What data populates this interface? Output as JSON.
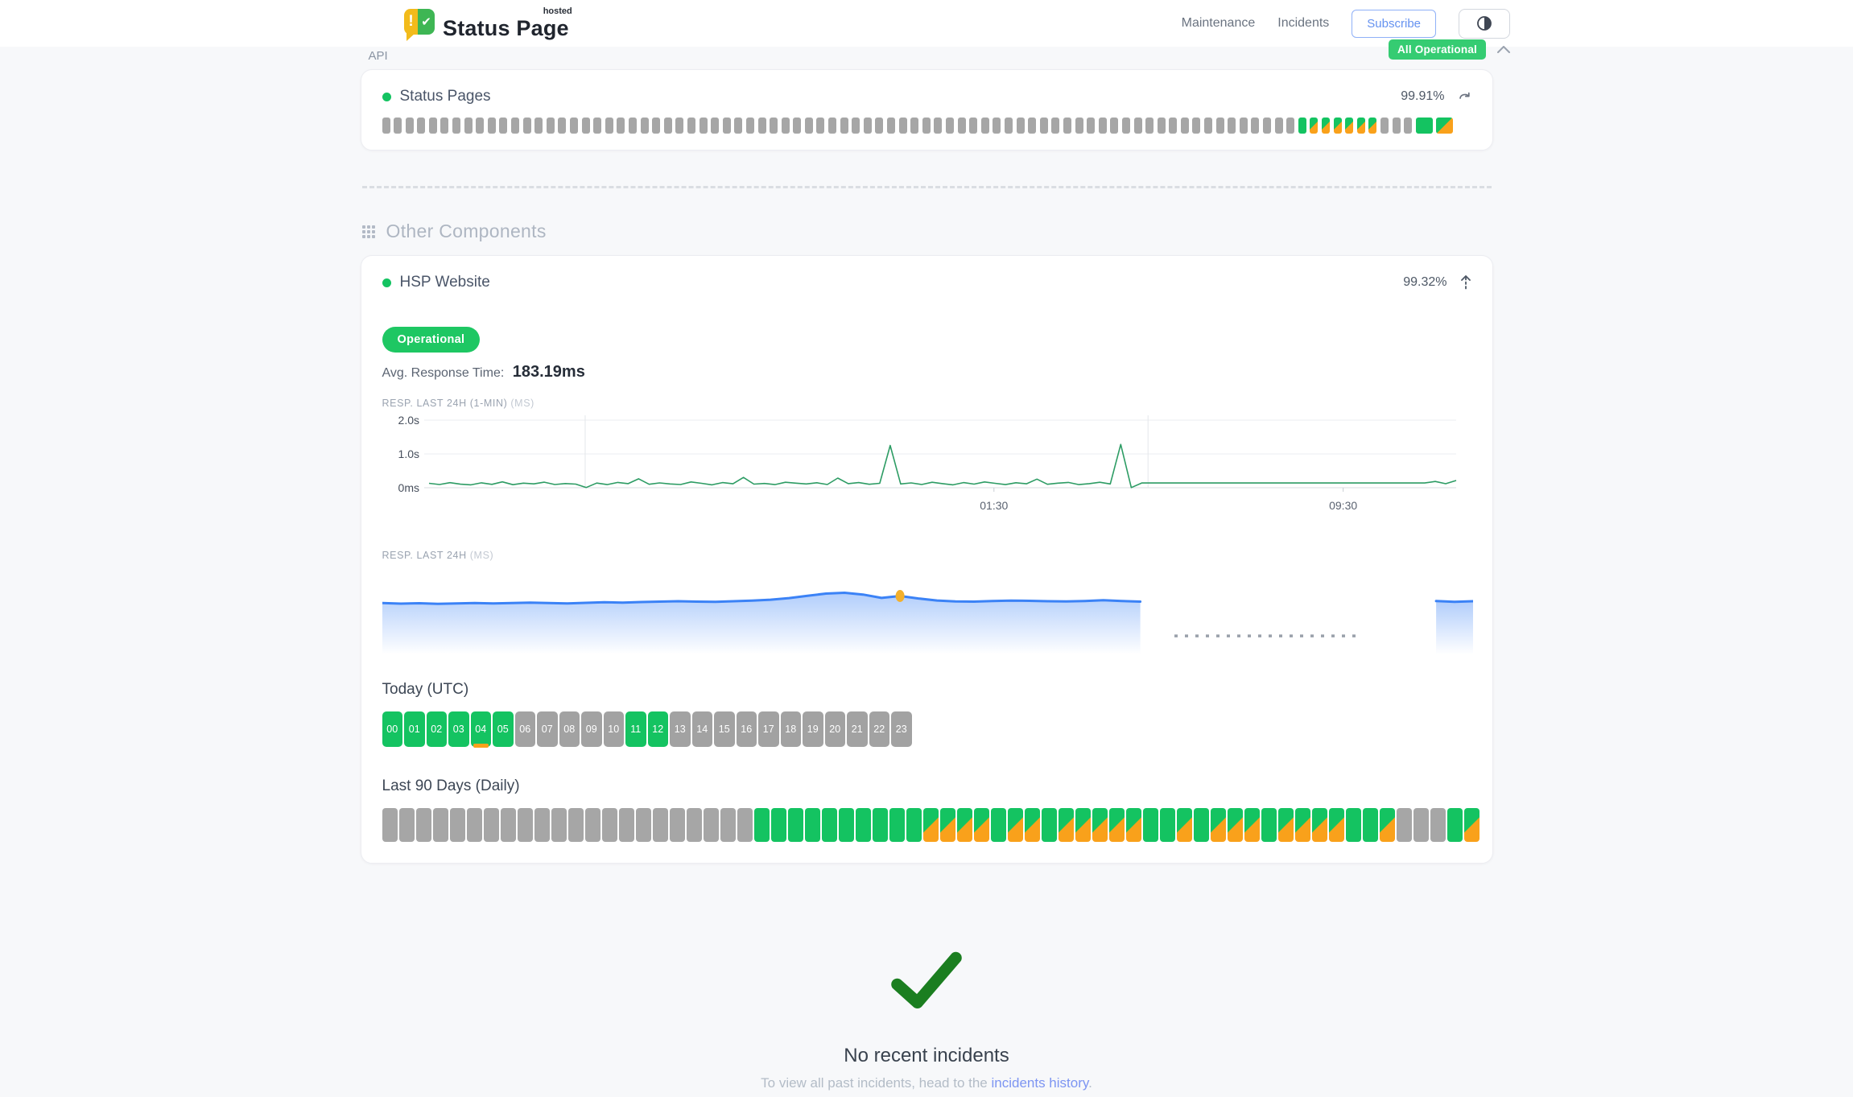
{
  "header": {
    "brand": {
      "title": "Status Page",
      "superscript": "hosted"
    },
    "nav": [
      {
        "label": "Maintenance"
      },
      {
        "label": "Incidents"
      }
    ],
    "subscribe_label": "Subscribe",
    "status_badge": "All Operational"
  },
  "sections": {
    "api": {
      "title": "API",
      "component": {
        "name": "Status Pages",
        "uptime_pct": "99.91%",
        "bars_rle": [
          [
            "g",
            78
          ],
          [
            "n",
            1
          ],
          [
            "s",
            6
          ],
          [
            "g",
            3
          ],
          [
            "nw",
            1
          ],
          [
            "sw",
            1
          ]
        ]
      }
    },
    "other": {
      "title": "Other Components",
      "component": {
        "name": "HSP Website",
        "uptime_pct": "99.32%",
        "status_label": "Operational",
        "avg_response_label": "Avg. Response Time:",
        "avg_response_value": "183.19ms",
        "chart1_label": "RESP. LAST 24H (1-MIN)",
        "chart1_unit": "(MS)",
        "chart2_label": "RESP. LAST 24H",
        "chart2_unit": "(MS)",
        "today_title": "Today (UTC)",
        "hours": [
          {
            "label": "00",
            "status": "green"
          },
          {
            "label": "01",
            "status": "green"
          },
          {
            "label": "02",
            "status": "green"
          },
          {
            "label": "03",
            "status": "green"
          },
          {
            "label": "04",
            "status": "green",
            "degraded": true
          },
          {
            "label": "05",
            "status": "green"
          },
          {
            "label": "06",
            "status": "gray"
          },
          {
            "label": "07",
            "status": "gray"
          },
          {
            "label": "08",
            "status": "gray"
          },
          {
            "label": "09",
            "status": "gray"
          },
          {
            "label": "10",
            "status": "gray"
          },
          {
            "label": "11",
            "status": "green"
          },
          {
            "label": "12",
            "status": "green"
          },
          {
            "label": "13",
            "status": "gray"
          },
          {
            "label": "14",
            "status": "gray"
          },
          {
            "label": "15",
            "status": "gray"
          },
          {
            "label": "16",
            "status": "gray"
          },
          {
            "label": "17",
            "status": "gray"
          },
          {
            "label": "18",
            "status": "gray"
          },
          {
            "label": "19",
            "status": "gray"
          },
          {
            "label": "20",
            "status": "gray"
          },
          {
            "label": "21",
            "status": "gray"
          },
          {
            "label": "22",
            "status": "gray"
          },
          {
            "label": "23",
            "status": "gray"
          }
        ],
        "daily_title": "Last 90 Days (Daily)",
        "daily_rle": [
          [
            "g",
            22
          ],
          [
            "n",
            10
          ],
          [
            "s",
            4
          ],
          [
            "n",
            1
          ],
          [
            "s",
            2
          ],
          [
            "n",
            1
          ],
          [
            "s",
            5
          ],
          [
            "n",
            2
          ],
          [
            "s",
            1
          ],
          [
            "n",
            1
          ],
          [
            "s",
            3
          ],
          [
            "n",
            1
          ],
          [
            "s",
            4
          ],
          [
            "n",
            2
          ],
          [
            "s",
            1
          ],
          [
            "g",
            3
          ],
          [
            "n",
            1
          ],
          [
            "s",
            1
          ]
        ]
      }
    }
  },
  "incidents": {
    "title": "No recent incidents",
    "subtitle_prefix": "To view all past incidents, head to the ",
    "link_text": "incidents history",
    "subtitle_suffix": "."
  },
  "chart_data": [
    {
      "type": "line",
      "title": "RESP. LAST 24H (1-MIN) (MS)",
      "ylim": [
        0,
        2000
      ],
      "y_ticks": [
        {
          "v": 2000,
          "label": "2.0s"
        },
        {
          "v": 1000,
          "label": "1.0s"
        },
        {
          "v": 0,
          "label": "0ms"
        }
      ],
      "grid_x": [
        0.152,
        0.7
      ],
      "x_ticks": [
        {
          "label": "01:30",
          "pos": 0.55
        },
        {
          "label": "09:30",
          "pos": 0.89
        }
      ],
      "color": "#2d9c64",
      "values": [
        130,
        95,
        150,
        105,
        85,
        145,
        100,
        175,
        90,
        135,
        115,
        165,
        95,
        125,
        108,
        8,
        138,
        92,
        158,
        122,
        265,
        102,
        142,
        112,
        96,
        172,
        132,
        86,
        152,
        116,
        305,
        106,
        126,
        92,
        162,
        136,
        112,
        148,
        96,
        285,
        122,
        152,
        102,
        132,
        1250,
        112,
        142,
        96,
        162,
        122,
        86,
        152,
        106,
        172,
        132,
        92,
        148,
        116,
        255,
        102,
        136,
        158,
        92,
        122,
        162,
        112,
        1280,
        4,
        140,
        140,
        140,
        140,
        140,
        140,
        140,
        140,
        140,
        140,
        140,
        140,
        140,
        140,
        140,
        140,
        140,
        140,
        140,
        140,
        140,
        140,
        140,
        140,
        140,
        140,
        140,
        140,
        185,
        120,
        215
      ]
    },
    {
      "type": "area",
      "title": "RESP. LAST 24H (MS)",
      "ylim": [
        0,
        320
      ],
      "color": "#3b82f6",
      "marker_index": 28,
      "gap_dash": {
        "from": 0.726,
        "to": 0.898,
        "level": 28
      },
      "values": [
        196,
        193,
        195,
        192,
        194,
        196,
        194,
        196,
        198,
        196,
        194,
        197,
        200,
        198,
        201,
        203,
        205,
        203,
        202,
        205,
        208,
        213,
        221,
        233,
        244,
        248,
        239,
        222,
        232,
        219,
        209,
        204,
        203,
        206,
        208,
        207,
        205,
        204,
        206,
        210,
        206,
        203,
        null,
        null,
        null,
        null,
        null,
        null,
        null,
        null,
        null,
        null,
        null,
        null,
        null,
        null,
        null,
        206,
        202,
        205
      ]
    }
  ],
  "colors": {
    "green": "#14c361",
    "orange": "#f9a11b",
    "gray_block": "#a6a6a6",
    "blue": "#3b82f6",
    "marker": "#f3b02c",
    "link": "#7d95f2",
    "check": "#1b7e20",
    "subscribe": "#6592f0"
  }
}
